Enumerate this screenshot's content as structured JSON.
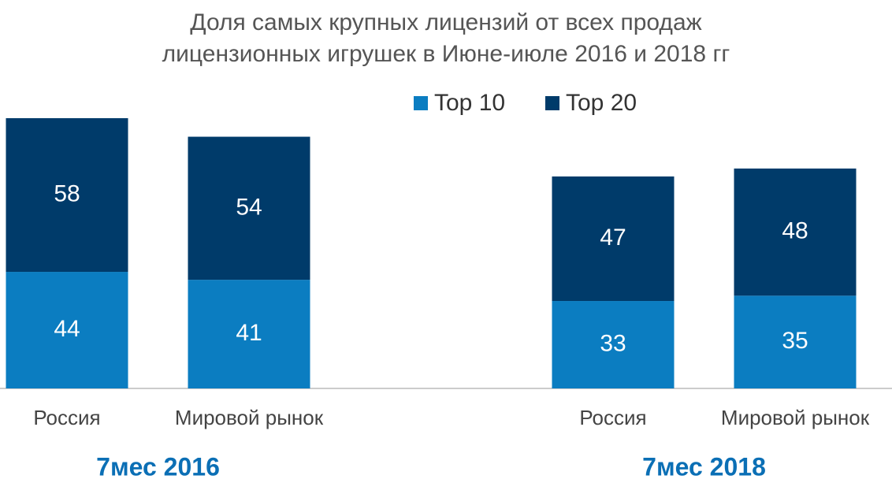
{
  "chart_data": {
    "type": "stacked-bar",
    "title": [
      "Доля самых крупных лицензий от всех продаж",
      "лицензионных игрушек в Июне-июле 2016 и 2018 гг"
    ],
    "categories": [
      "Россия",
      "Мировой рынок",
      null,
      "Россия",
      "Мировой рынок"
    ],
    "group_labels": [
      "7мес 2016",
      "7мес 2018"
    ],
    "series": [
      {
        "name": "Top 10",
        "color": "#0b7dc1",
        "values": [
          44,
          41,
          null,
          33,
          35
        ]
      },
      {
        "name": "Top 20",
        "color": "#003b6a",
        "values": [
          58,
          54,
          null,
          47,
          48
        ]
      }
    ],
    "ylim": [
      0,
      102
    ],
    "grid": false
  }
}
